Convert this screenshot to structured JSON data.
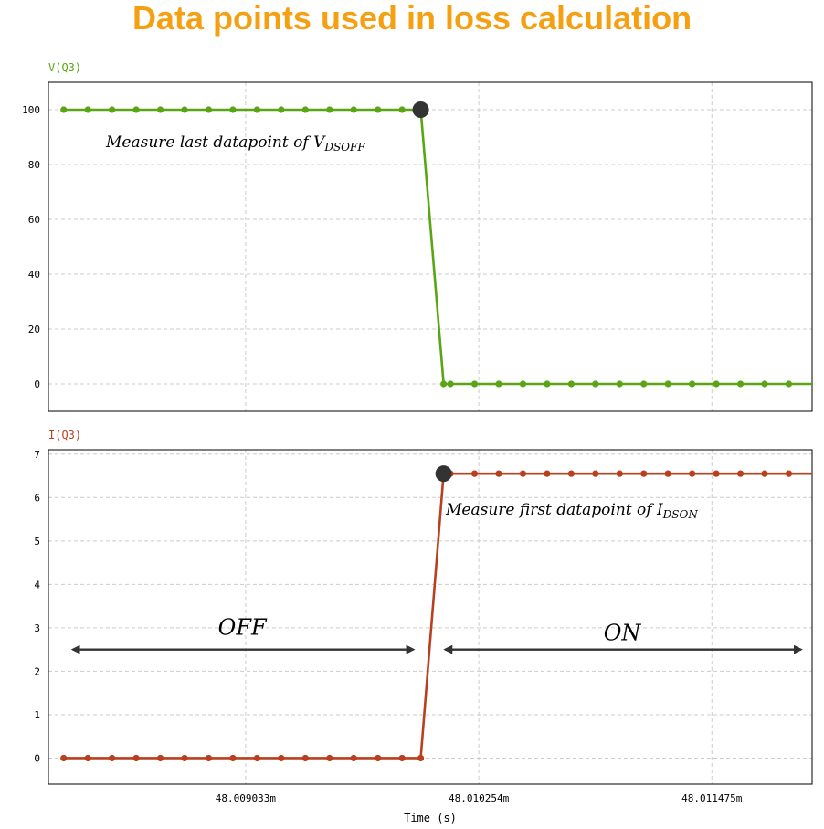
{
  "page": {
    "title": "Data points used in loss calculation"
  },
  "colors": {
    "title": "#f5a012",
    "voltage": "#5aa514",
    "current": "#b8401e",
    "marker": "#333333",
    "arrow": "#333333",
    "grid": "#cccccc",
    "frame": "#000000"
  },
  "chart_data": [
    {
      "type": "line",
      "ylabel": "V(Q3)",
      "ylim": [
        -10,
        110
      ],
      "yticks": [
        0,
        20,
        40,
        60,
        80,
        100
      ],
      "xlim": [
        48.008,
        48.012
      ],
      "x_grid": [
        48.009033,
        48.010254,
        48.011475
      ],
      "grid": true,
      "series": [
        {
          "label_ref": "ylabel",
          "segments": [
            {
              "x": [
                48.00808,
                48.00995
              ],
              "y": [
                100,
                100
              ]
            },
            {
              "x": [
                48.00995,
                48.01007
              ],
              "y": [
                100,
                0
              ]
            },
            {
              "x": [
                48.01007,
                48.012
              ],
              "y": [
                0,
                0
              ]
            }
          ],
          "sample_step": 0.0001266,
          "sample_first": 48.00808
        }
      ],
      "annotation": {
        "text": "Measure last datapoint of ",
        "var": "V",
        "sub": "DSOFF",
        "point": {
          "x": 48.00995,
          "y": 100
        }
      }
    },
    {
      "type": "line",
      "ylabel": "I(Q3)",
      "ylim": [
        -0.6,
        7.1
      ],
      "yticks": [
        0,
        1,
        2,
        3,
        4,
        5,
        6,
        7
      ],
      "xlim": [
        48.008,
        48.012
      ],
      "x_grid": [
        48.009033,
        48.010254,
        48.011475
      ],
      "xticklabels": [
        "48.009033m",
        "48.010254m",
        "48.011475m"
      ],
      "xlabel": "Time (s)",
      "grid": true,
      "series": [
        {
          "label_ref": "ylabel",
          "segments": [
            {
              "x": [
                48.00808,
                48.00995
              ],
              "y": [
                0,
                0
              ]
            },
            {
              "x": [
                48.00995,
                48.01007
              ],
              "y": [
                0,
                6.55
              ]
            },
            {
              "x": [
                48.01007,
                48.012
              ],
              "y": [
                6.55,
                6.55
              ]
            }
          ],
          "sample_step": 0.0001266,
          "sample_first": 48.00808
        }
      ],
      "annotation": {
        "text": "Measure first datapoint of ",
        "var": "I",
        "sub": "DSON",
        "point": {
          "x": 48.01007,
          "y": 6.55
        }
      },
      "regions": [
        {
          "label": "OFF",
          "x": [
            48.00808,
            48.00995
          ],
          "y": 2.5
        },
        {
          "label": "ON",
          "x": [
            48.01003,
            48.01198
          ],
          "y": 2.5
        }
      ]
    }
  ]
}
